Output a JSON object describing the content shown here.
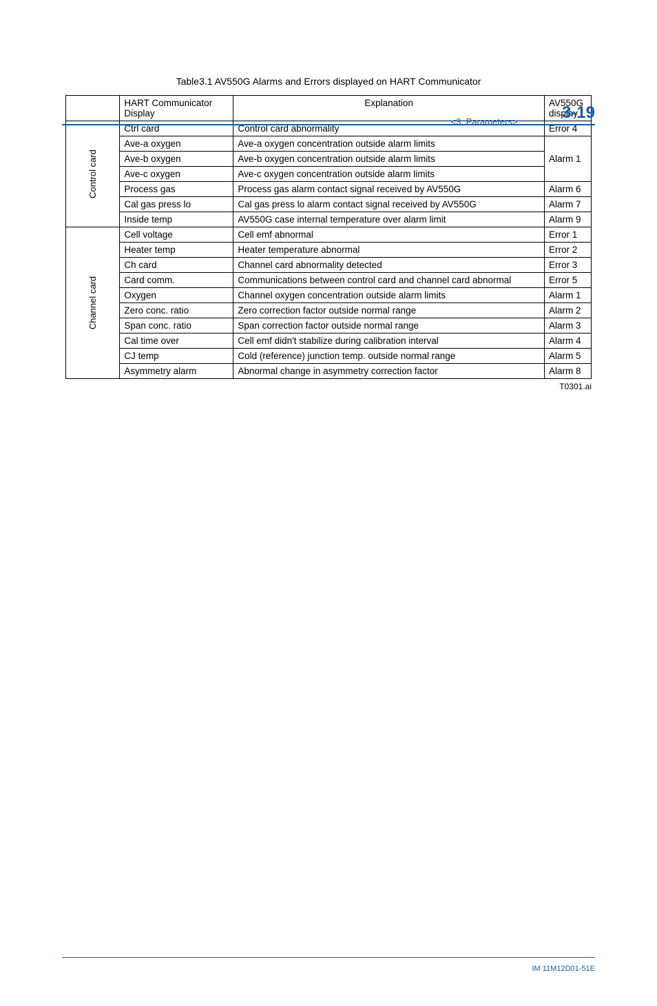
{
  "header": {
    "section_label": "<3. Parameters>",
    "page_number": "3-19"
  },
  "caption": "Table3.1 AV550G Alarms and Errors displayed on HART Communicator",
  "columns": {
    "spacer": "",
    "hart_line1": "HART Communicator",
    "hart_line2": "Display",
    "explanation": "Explanation",
    "disp_line1": "AV550G",
    "disp_line2": "display"
  },
  "groups": [
    {
      "label": "Control card",
      "rows": [
        {
          "hart": "Ctrl card",
          "expl": "Control card abnormality",
          "disp": "Error 4",
          "disp_rowspan": 1
        },
        {
          "hart": "Ave-a oxygen",
          "expl": "Ave-a oxygen concentration outside alarm limits",
          "disp": "Alarm 1",
          "disp_rowspan": 3
        },
        {
          "hart": "Ave-b oxygen",
          "expl": "Ave-b oxygen concentration outside alarm limits"
        },
        {
          "hart": "Ave-c oxygen",
          "expl": "Ave-c oxygen concentration outside alarm limits"
        },
        {
          "hart": "Process gas",
          "expl": "Process gas alarm contact signal received by AV550G",
          "disp": "Alarm 6",
          "disp_rowspan": 1
        },
        {
          "hart": "Cal gas press lo",
          "expl": "Cal gas press lo alarm contact signal received by AV550G",
          "disp": "Alarm 7",
          "disp_rowspan": 1
        },
        {
          "hart": "Inside temp",
          "expl": "AV550G case internal temperature over alarm limit",
          "disp": "Alarm 9",
          "disp_rowspan": 1
        }
      ]
    },
    {
      "label": "Channel card",
      "rows": [
        {
          "hart": "Cell voltage",
          "expl": "Cell emf abnormal",
          "disp": "Error 1",
          "disp_rowspan": 1
        },
        {
          "hart": "Heater temp",
          "expl": "Heater temperature abnormal",
          "disp": "Error 2",
          "disp_rowspan": 1
        },
        {
          "hart": "Ch card",
          "expl": "Channel card abnormality detected",
          "disp": "Error 3",
          "disp_rowspan": 1
        },
        {
          "hart": "Card comm.",
          "expl": "Communications between control card and channel card abnormal",
          "disp": "Error 5",
          "disp_rowspan": 1
        },
        {
          "hart": "Oxygen",
          "expl": "Channel oxygen concentration outside alarm limits",
          "disp": "Alarm 1",
          "disp_rowspan": 1
        },
        {
          "hart": "Zero conc. ratio",
          "expl": "Zero correction factor outside normal range",
          "disp": "Alarm 2",
          "disp_rowspan": 1
        },
        {
          "hart": "Span conc. ratio",
          "expl": "Span correction factor outside normal range",
          "disp": "Alarm 3",
          "disp_rowspan": 1
        },
        {
          "hart": "Cal time over",
          "expl": "Cell emf didn't stabilize during calibration interval",
          "disp": "Alarm 4",
          "disp_rowspan": 1
        },
        {
          "hart": "CJ temp",
          "expl": "Cold (reference) junction temp. outside normal range",
          "disp": "Alarm 5",
          "disp_rowspan": 1
        },
        {
          "hart": "Asymmetry alarm",
          "expl": "Abnormal change in asymmetry correction factor",
          "disp": "Alarm 8",
          "disp_rowspan": 1
        }
      ]
    }
  ],
  "footnote": "T0301.ai",
  "footer": "IM 11M12D01-51E"
}
